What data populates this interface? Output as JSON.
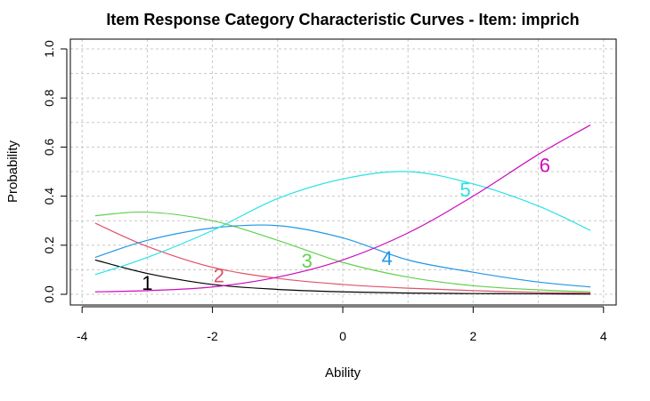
{
  "chart_data": {
    "type": "line",
    "title": "Item Response Category Characteristic Curves - Item: imprich",
    "xlabel": "Ability",
    "ylabel": "Probability",
    "xlim": [
      -4,
      4
    ],
    "ylim": [
      0,
      1
    ],
    "xticks": [
      "-4",
      "-2",
      "0",
      "2",
      "4"
    ],
    "yticks": [
      "0.0",
      "0.2",
      "0.4",
      "0.6",
      "0.8",
      "1.0"
    ],
    "grid": true,
    "x": [
      -3.8,
      -3,
      -2,
      -1,
      0,
      1,
      2,
      3,
      3.8
    ],
    "series": [
      {
        "name": "1",
        "color": "#000000",
        "values": [
          0.14,
          0.085,
          0.04,
          0.02,
          0.01,
          0.005,
          0.003,
          0.002,
          0.001
        ]
      },
      {
        "name": "2",
        "color": "#DF536B",
        "values": [
          0.29,
          0.195,
          0.11,
          0.065,
          0.04,
          0.025,
          0.015,
          0.008,
          0.005
        ]
      },
      {
        "name": "3",
        "color": "#61D04F",
        "values": [
          0.32,
          0.335,
          0.3,
          0.22,
          0.13,
          0.07,
          0.035,
          0.018,
          0.01
        ]
      },
      {
        "name": "4",
        "color": "#2297E6",
        "values": [
          0.15,
          0.22,
          0.27,
          0.28,
          0.23,
          0.14,
          0.09,
          0.05,
          0.03
        ]
      },
      {
        "name": "5",
        "color": "#28E2E5",
        "values": [
          0.08,
          0.15,
          0.26,
          0.39,
          0.47,
          0.5,
          0.45,
          0.36,
          0.26
        ]
      },
      {
        "name": "6",
        "color": "#CD0BBC",
        "values": [
          0.01,
          0.015,
          0.03,
          0.07,
          0.14,
          0.25,
          0.4,
          0.57,
          0.69
        ]
      }
    ],
    "curve_labels": [
      {
        "text": "1",
        "x": -3.0,
        "y": 0.04
      },
      {
        "text": "2",
        "x": -1.9,
        "y": 0.07
      },
      {
        "text": "3",
        "x": -0.55,
        "y": 0.13
      },
      {
        "text": "4",
        "x": 0.68,
        "y": 0.14
      },
      {
        "text": "5",
        "x": 1.88,
        "y": 0.42
      },
      {
        "text": "6",
        "x": 3.1,
        "y": 0.52
      }
    ]
  }
}
